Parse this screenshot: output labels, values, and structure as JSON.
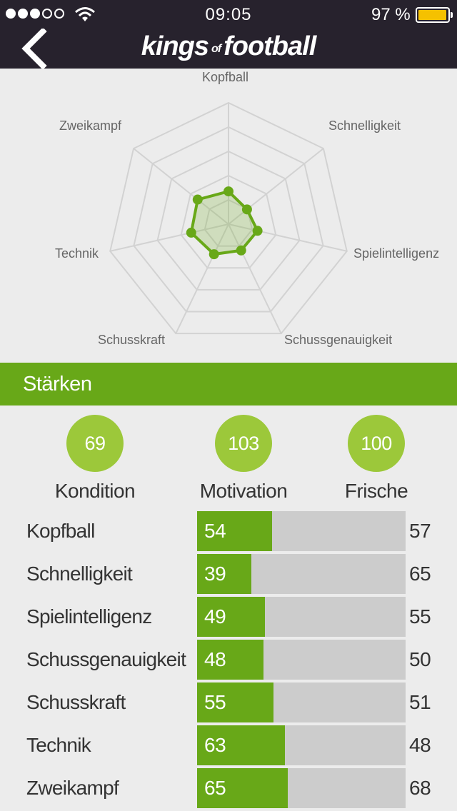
{
  "status_bar": {
    "signal_dots_filled": 3,
    "signal_dots_total": 5,
    "time": "09:05",
    "battery_percent": "97 %",
    "battery_level": 0.97,
    "icons": [
      "signal-dots-icon",
      "wifi-icon",
      "battery-icon"
    ]
  },
  "nav": {
    "back_icon": "chevron-left-icon",
    "logo": {
      "part1": "kings",
      "part2": "of",
      "part3": "football"
    }
  },
  "radar": {
    "axes": [
      "Kopfball",
      "Schnelligkeit",
      "Spielintelligenz",
      "Schussgenauigkeit",
      "Schusskraft",
      "Technik",
      "Zweikampf"
    ],
    "max": 200,
    "rings": 5,
    "values": [
      54,
      39,
      49,
      48,
      55,
      63,
      65
    ],
    "color": "#68a818"
  },
  "section": {
    "title": "Stärken"
  },
  "bubbles": [
    {
      "value": "69",
      "label": "Kondition"
    },
    {
      "value": "103",
      "label": "Motivation"
    },
    {
      "value": "100",
      "label": "Frische"
    }
  ],
  "stats": {
    "max": 150,
    "rows": [
      {
        "name": "Kopfball",
        "value": 54,
        "compare": 57
      },
      {
        "name": "Schnelligkeit",
        "value": 39,
        "compare": 65
      },
      {
        "name": "Spielintelligenz",
        "value": 49,
        "compare": 55
      },
      {
        "name": "Schussgenauigkeit",
        "value": 48,
        "compare": 50
      },
      {
        "name": "Schusskraft",
        "value": 55,
        "compare": 51
      },
      {
        "name": "Technik",
        "value": 63,
        "compare": 48
      },
      {
        "name": "Zweikampf",
        "value": 65,
        "compare": 68
      }
    ]
  },
  "colors": {
    "header_bg": "#27222d",
    "accent": "#68a818",
    "bubble": "#9cc83a",
    "track": "#cccccc",
    "battery": "#f5c100"
  }
}
